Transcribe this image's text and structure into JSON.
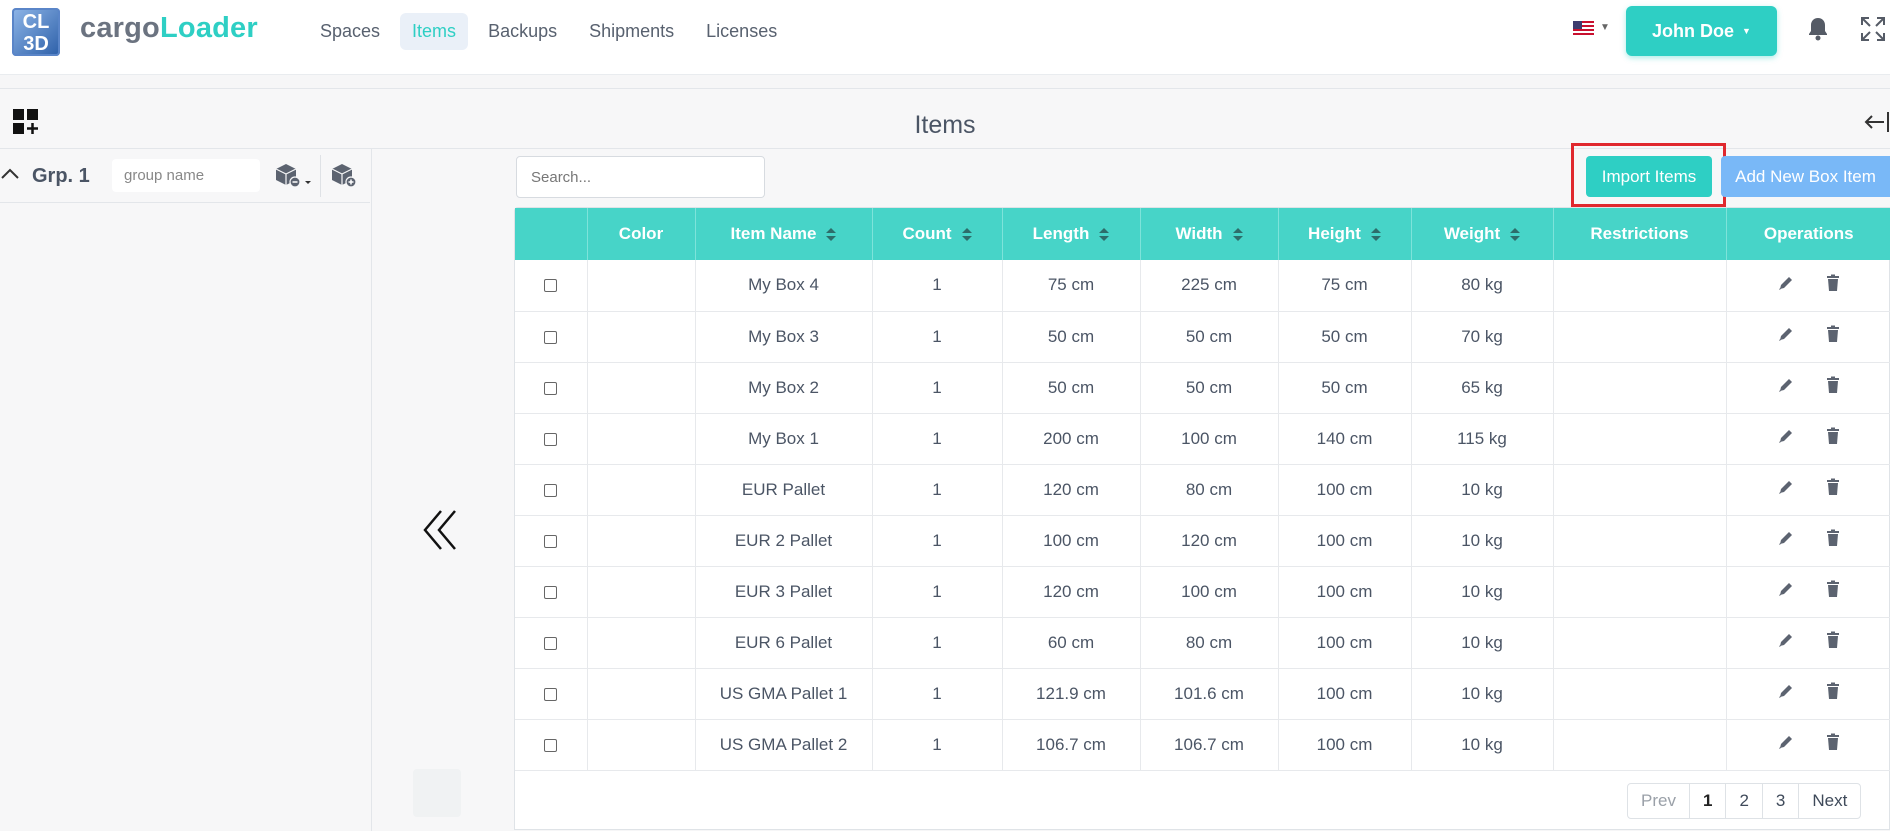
{
  "app": {
    "logo_text": "CL 3D",
    "brand_part1": "cargo",
    "brand_part2": "Loader"
  },
  "nav": [
    {
      "label": "Spaces",
      "active": false
    },
    {
      "label": "Items",
      "active": true
    },
    {
      "label": "Backups",
      "active": false
    },
    {
      "label": "Shipments",
      "active": false
    },
    {
      "label": "Licenses",
      "active": false
    }
  ],
  "header": {
    "user_name": "John Doe",
    "language_flag": "us-flag-icon"
  },
  "page": {
    "title": "Items"
  },
  "group": {
    "label": "Grp. 1",
    "name_placeholder": "group name"
  },
  "toolbar": {
    "search_placeholder": "Search...",
    "import_label": "Import Items",
    "add_label": "Add New Box Item"
  },
  "table": {
    "columns": [
      "",
      "Color",
      "Item Name",
      "Count",
      "Length",
      "Width",
      "Height",
      "Weight",
      "Restrictions",
      "Operations"
    ],
    "rows": [
      {
        "name": "My Box 4",
        "count": "1",
        "length": "75 cm",
        "width": "225 cm",
        "height": "75 cm",
        "weight": "80 kg"
      },
      {
        "name": "My Box 3",
        "count": "1",
        "length": "50 cm",
        "width": "50 cm",
        "height": "50 cm",
        "weight": "70 kg"
      },
      {
        "name": "My Box 2",
        "count": "1",
        "length": "50 cm",
        "width": "50 cm",
        "height": "50 cm",
        "weight": "65 kg"
      },
      {
        "name": "My Box 1",
        "count": "1",
        "length": "200 cm",
        "width": "100 cm",
        "height": "140 cm",
        "weight": "115 kg"
      },
      {
        "name": "EUR Pallet",
        "count": "1",
        "length": "120 cm",
        "width": "80 cm",
        "height": "100 cm",
        "weight": "10 kg"
      },
      {
        "name": "EUR 2 Pallet",
        "count": "1",
        "length": "100 cm",
        "width": "120 cm",
        "height": "100 cm",
        "weight": "10 kg"
      },
      {
        "name": "EUR 3 Pallet",
        "count": "1",
        "length": "120 cm",
        "width": "100 cm",
        "height": "100 cm",
        "weight": "10 kg"
      },
      {
        "name": "EUR 6 Pallet",
        "count": "1",
        "length": "60 cm",
        "width": "80 cm",
        "height": "100 cm",
        "weight": "10 kg"
      },
      {
        "name": "US GMA Pallet 1",
        "count": "1",
        "length": "121.9 cm",
        "width": "101.6 cm",
        "height": "100 cm",
        "weight": "10 kg"
      },
      {
        "name": "US GMA Pallet 2",
        "count": "1",
        "length": "106.7 cm",
        "width": "106.7 cm",
        "height": "100 cm",
        "weight": "10 kg"
      }
    ]
  },
  "pagination": {
    "prev": "Prev",
    "pages": [
      "1",
      "2",
      "3"
    ],
    "current": "1",
    "next": "Next"
  },
  "colors": {
    "accent": "#2ecfc4",
    "header_row": "#47d4c8",
    "secondary_button": "#79b8f7",
    "highlight": "#e0282e"
  }
}
